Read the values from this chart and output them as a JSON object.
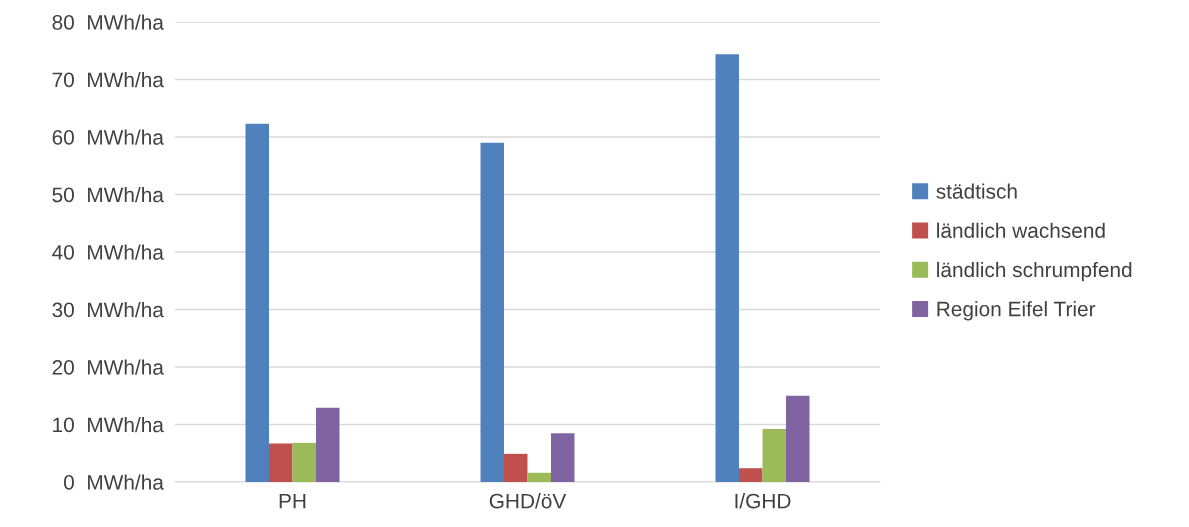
{
  "chart_data": {
    "type": "bar",
    "categories": [
      "PH",
      "GHD/öV",
      "I/GHD"
    ],
    "series": [
      {
        "name": "städtisch",
        "color": "#4f81bd",
        "values": [
          62.3,
          59.0,
          74.4
        ]
      },
      {
        "name": "ländlich wachsend",
        "color": "#c0504d",
        "values": [
          6.7,
          4.9,
          2.4
        ]
      },
      {
        "name": "ländlich schrumpfend",
        "color": "#9bbb59",
        "values": [
          6.8,
          1.6,
          9.2
        ]
      },
      {
        "name": "Region Eifel Trier",
        "color": "#8064a2",
        "values": [
          12.9,
          8.5,
          15.0
        ]
      }
    ],
    "ylim": [
      0,
      80
    ],
    "yticks": [
      {
        "value": 0,
        "label": "0  MWh/ha"
      },
      {
        "value": 10,
        "label": "10  MWh/ha"
      },
      {
        "value": 20,
        "label": "20  MWh/ha"
      },
      {
        "value": 30,
        "label": "30  MWh/ha"
      },
      {
        "value": 40,
        "label": "40  MWh/ha"
      },
      {
        "value": 50,
        "label": "50  MWh/ha"
      },
      {
        "value": 60,
        "label": "60  MWh/ha"
      },
      {
        "value": 70,
        "label": "70  MWh/ha"
      },
      {
        "value": 80,
        "label": "80  MWh/ha"
      }
    ],
    "grid": "y",
    "legend": "right"
  }
}
